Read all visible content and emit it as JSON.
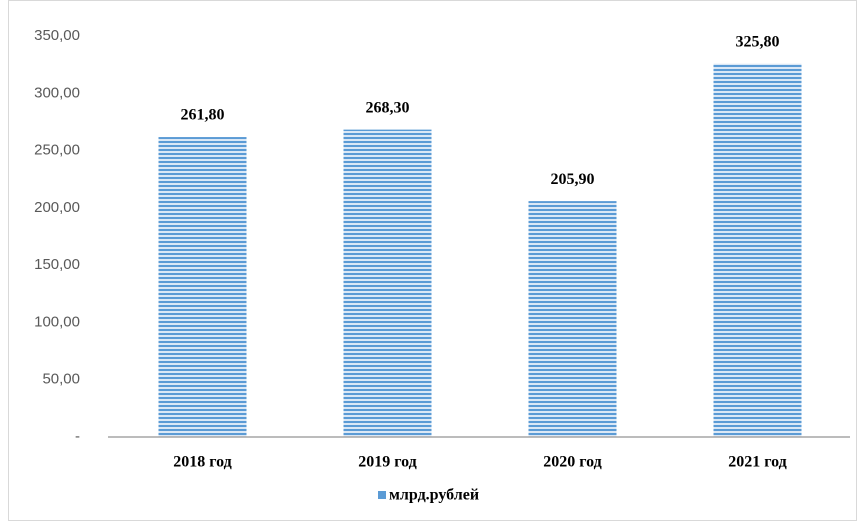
{
  "chart_data": {
    "type": "bar",
    "categories": [
      "2018 год",
      "2019 год",
      "2020 год",
      "2021 год"
    ],
    "series": [
      {
        "name": "млрд.рублей",
        "color": "#5b9bd5",
        "values": [
          261.8,
          268.3,
          205.9,
          325.8
        ],
        "value_labels": [
          "261,80",
          "268,30",
          "205,90",
          "325,80"
        ]
      }
    ],
    "ylim": [
      0,
      350
    ],
    "yticks": [
      {
        "value": 0,
        "label": "-"
      },
      {
        "value": 50,
        "label": "50,00"
      },
      {
        "value": 100,
        "label": "100,00"
      },
      {
        "value": 150,
        "label": "150,00"
      },
      {
        "value": 200,
        "label": "200,00"
      },
      {
        "value": 250,
        "label": "250,00"
      },
      {
        "value": 300,
        "label": "300,00"
      },
      {
        "value": 350,
        "label": "350,00"
      }
    ],
    "grid": false,
    "legend": "bottom"
  }
}
